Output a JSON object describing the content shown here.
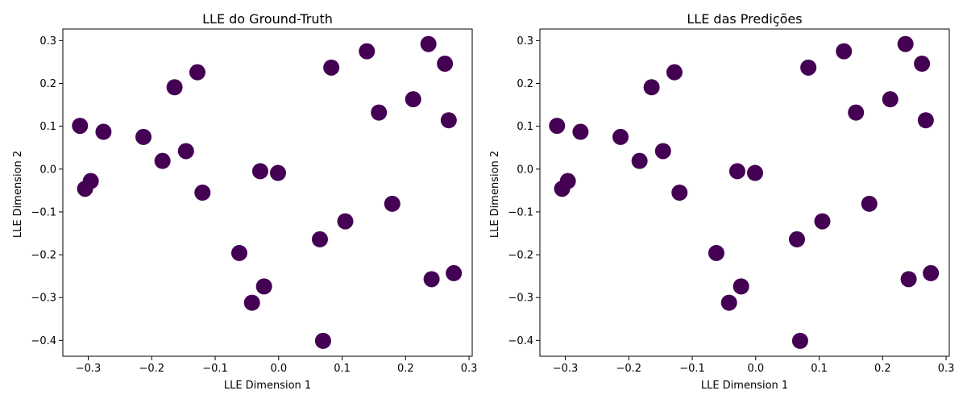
{
  "chart_data": [
    {
      "type": "scatter",
      "title": "LLE do Ground-Truth",
      "xlabel": "LLE Dimension 1",
      "ylabel": "LLE Dimension 2",
      "xlim": [
        -0.34,
        0.305
      ],
      "ylim": [
        -0.437,
        0.327
      ],
      "xticks": [
        -0.3,
        -0.2,
        -0.1,
        0.0,
        0.1,
        0.2,
        0.3
      ],
      "xtick_labels": [
        "−0.3",
        "−0.2",
        "−0.1",
        "0.0",
        "0.1",
        "0.2",
        "0.3"
      ],
      "yticks": [
        -0.4,
        -0.3,
        -0.2,
        -0.1,
        0.0,
        0.1,
        0.2,
        0.3
      ],
      "ytick_labels": [
        "−0.4",
        "−0.3",
        "−0.2",
        "−0.1",
        "0.0",
        "0.1",
        "0.2",
        "0.3"
      ],
      "grid": false,
      "marker_color": "#440154",
      "points": [
        {
          "x": -0.313,
          "y": 0.101
        },
        {
          "x": -0.276,
          "y": 0.087
        },
        {
          "x": -0.296,
          "y": -0.028
        },
        {
          "x": -0.305,
          "y": -0.046
        },
        {
          "x": -0.213,
          "y": 0.075
        },
        {
          "x": -0.183,
          "y": 0.019
        },
        {
          "x": -0.146,
          "y": 0.042
        },
        {
          "x": -0.164,
          "y": 0.191
        },
        {
          "x": -0.128,
          "y": 0.226
        },
        {
          "x": -0.12,
          "y": -0.055
        },
        {
          "x": -0.062,
          "y": -0.196
        },
        {
          "x": -0.023,
          "y": -0.274
        },
        {
          "x": -0.042,
          "y": -0.312
        },
        {
          "x": -0.029,
          "y": -0.005
        },
        {
          "x": -0.001,
          "y": -0.009
        },
        {
          "x": 0.065,
          "y": -0.164
        },
        {
          "x": 0.07,
          "y": -0.401
        },
        {
          "x": 0.083,
          "y": 0.237
        },
        {
          "x": 0.105,
          "y": -0.122
        },
        {
          "x": 0.139,
          "y": 0.275
        },
        {
          "x": 0.158,
          "y": 0.132
        },
        {
          "x": 0.179,
          "y": -0.081
        },
        {
          "x": 0.212,
          "y": 0.163
        },
        {
          "x": 0.236,
          "y": 0.292
        },
        {
          "x": 0.262,
          "y": 0.246
        },
        {
          "x": 0.268,
          "y": 0.114
        },
        {
          "x": 0.241,
          "y": -0.257
        },
        {
          "x": 0.276,
          "y": -0.243
        }
      ]
    },
    {
      "type": "scatter",
      "title": "LLE das Predições",
      "xlabel": "LLE Dimension 1",
      "ylabel": "LLE Dimension 2",
      "xlim": [
        -0.34,
        0.305
      ],
      "ylim": [
        -0.437,
        0.327
      ],
      "xticks": [
        -0.3,
        -0.2,
        -0.1,
        0.0,
        0.1,
        0.2,
        0.3
      ],
      "xtick_labels": [
        "−0.3",
        "−0.2",
        "−0.1",
        "0.0",
        "0.1",
        "0.2",
        "0.3"
      ],
      "yticks": [
        -0.4,
        -0.3,
        -0.2,
        -0.1,
        0.0,
        0.1,
        0.2,
        0.3
      ],
      "ytick_labels": [
        "−0.4",
        "−0.3",
        "−0.2",
        "−0.1",
        "0.0",
        "0.1",
        "0.2",
        "0.3"
      ],
      "grid": false,
      "marker_color": "#440154",
      "points": [
        {
          "x": -0.313,
          "y": 0.101
        },
        {
          "x": -0.276,
          "y": 0.087
        },
        {
          "x": -0.296,
          "y": -0.028
        },
        {
          "x": -0.305,
          "y": -0.046
        },
        {
          "x": -0.213,
          "y": 0.075
        },
        {
          "x": -0.183,
          "y": 0.019
        },
        {
          "x": -0.146,
          "y": 0.042
        },
        {
          "x": -0.164,
          "y": 0.191
        },
        {
          "x": -0.128,
          "y": 0.226
        },
        {
          "x": -0.12,
          "y": -0.055
        },
        {
          "x": -0.062,
          "y": -0.196
        },
        {
          "x": -0.023,
          "y": -0.274
        },
        {
          "x": -0.042,
          "y": -0.312
        },
        {
          "x": -0.029,
          "y": -0.005
        },
        {
          "x": -0.001,
          "y": -0.009
        },
        {
          "x": 0.065,
          "y": -0.164
        },
        {
          "x": 0.07,
          "y": -0.401
        },
        {
          "x": 0.083,
          "y": 0.237
        },
        {
          "x": 0.105,
          "y": -0.122
        },
        {
          "x": 0.139,
          "y": 0.275
        },
        {
          "x": 0.158,
          "y": 0.132
        },
        {
          "x": 0.179,
          "y": -0.081
        },
        {
          "x": 0.212,
          "y": 0.163
        },
        {
          "x": 0.236,
          "y": 0.292
        },
        {
          "x": 0.262,
          "y": 0.246
        },
        {
          "x": 0.268,
          "y": 0.114
        },
        {
          "x": 0.241,
          "y": -0.257
        },
        {
          "x": 0.276,
          "y": -0.243
        }
      ]
    }
  ]
}
